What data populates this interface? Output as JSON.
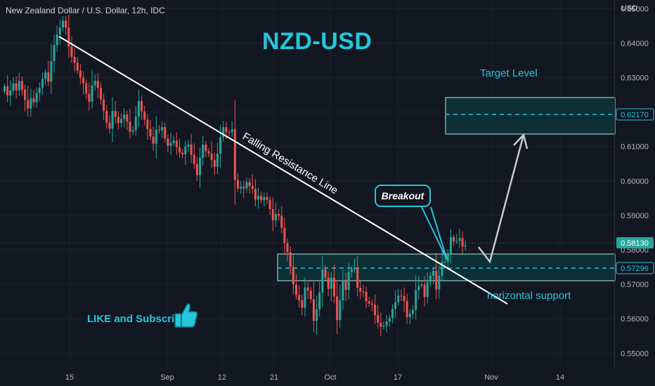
{
  "header": {
    "symbol_title": "New Zealand Dollar / U.S. Dollar, 12h, IDC",
    "currency": "USD"
  },
  "annotations": {
    "main_title": "NZD-USD",
    "trendline_label": "Falling Resistance Line",
    "breakout_label": "Breakout",
    "target_label": "Target Level",
    "support_label": "horizontal support",
    "like_label": "LIKE and Subscribe"
  },
  "colors": {
    "background": "#131722",
    "up": "#26a69a",
    "down": "#ef5350",
    "accent": "#26c6da",
    "line": "#ffffff"
  },
  "chart_data": {
    "type": "candlestick",
    "symbol": "NZD-USD",
    "interval": "12h",
    "ylim": [
      0.546,
      0.6525
    ],
    "y_ticks": [
      0.65,
      0.64,
      0.63,
      0.62,
      0.61,
      0.6,
      0.59,
      0.58,
      0.57,
      0.56,
      0.55
    ],
    "x_ticks": [
      "15",
      "Sep",
      "12",
      "21",
      "Oct",
      "17",
      "Nov",
      "14"
    ],
    "price_labels": {
      "target": "0.62170",
      "current": "0.58130",
      "support": "0.57296"
    },
    "candles_close": [
      0.6275,
      0.6248,
      0.6262,
      0.6283,
      0.6263,
      0.629,
      0.6265,
      0.6235,
      0.621,
      0.624,
      0.6228,
      0.6255,
      0.627,
      0.6296,
      0.6315,
      0.6288,
      0.6348,
      0.6394,
      0.6425,
      0.6445,
      0.6465,
      0.6445,
      0.639,
      0.636,
      0.6343,
      0.632,
      0.63,
      0.6283,
      0.6253,
      0.623,
      0.6277,
      0.629,
      0.627,
      0.6236,
      0.6203,
      0.6169,
      0.6152,
      0.6203,
      0.6186,
      0.6168,
      0.618,
      0.6193,
      0.6172,
      0.6143,
      0.6147,
      0.6187,
      0.6232,
      0.6202,
      0.6178,
      0.6151,
      0.6129,
      0.6108,
      0.6149,
      0.6147,
      0.6156,
      0.6123,
      0.6102,
      0.611,
      0.6117,
      0.6098,
      0.6082,
      0.6077,
      0.61,
      0.6106,
      0.6076,
      0.6049,
      0.6017,
      0.6067,
      0.6105,
      0.6086,
      0.6079,
      0.6061,
      0.6041,
      0.6079,
      0.6127,
      0.6156,
      0.6142,
      0.6141,
      0.615,
      0.6003,
      0.5978,
      0.5983,
      0.5978,
      0.5997,
      0.5985,
      0.5977,
      0.5946,
      0.5957,
      0.5944,
      0.5953,
      0.5945,
      0.5918,
      0.5886,
      0.5904,
      0.5899,
      0.5864,
      0.5819,
      0.5793,
      0.5751,
      0.5699,
      0.5669,
      0.5654,
      0.5632,
      0.5691,
      0.5682,
      0.5657,
      0.5594,
      0.5627,
      0.5676,
      0.5743,
      0.572,
      0.5687,
      0.5719,
      0.5665,
      0.5596,
      0.5654,
      0.5713,
      0.5684,
      0.5736,
      0.5744,
      0.5748,
      0.569,
      0.5679,
      0.5678,
      0.5651,
      0.5644,
      0.5641,
      0.5611,
      0.5589,
      0.5577,
      0.558,
      0.5592,
      0.5603,
      0.5629,
      0.5648,
      0.5667,
      0.5666,
      0.5651,
      0.5605,
      0.5615,
      0.5626,
      0.5683,
      0.5696,
      0.5699,
      0.5663,
      0.5707,
      0.5725,
      0.5739,
      0.5685,
      0.5725,
      0.5765,
      0.5766,
      0.5786,
      0.5837,
      0.5825,
      0.5826,
      0.5834,
      0.581,
      0.5813
    ]
  }
}
